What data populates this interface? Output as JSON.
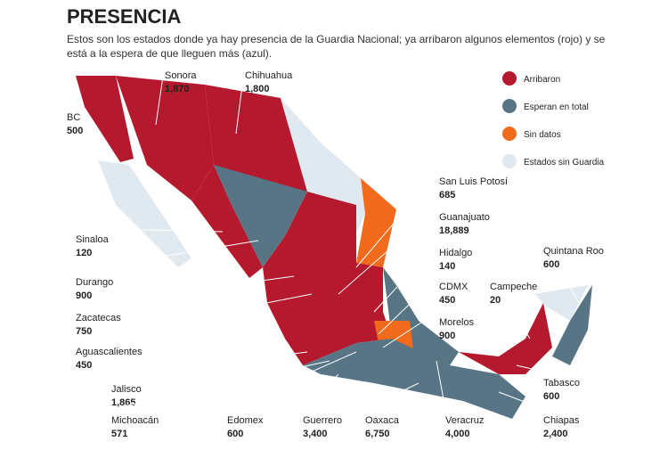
{
  "header": {
    "title": "PRESENCIA",
    "subtitle": "Estos son los estados donde ya hay presencia de la Guardia Nacional; ya arribaron algunos elementos (rojo) y se está a la espera de que lleguen más (azul)."
  },
  "legend": [
    {
      "label": "Arribaron",
      "color": "#b5192e"
    },
    {
      "label": "Esperan en total",
      "color": "#577585"
    },
    {
      "label": "Sin datos",
      "color": "#f26a1b"
    },
    {
      "label": "Estados sin Guardia",
      "color": "#dfe9ef"
    }
  ],
  "states": [
    {
      "name": "BC",
      "value": "500"
    },
    {
      "name": "Sonora",
      "value": "1,870"
    },
    {
      "name": "Chihuahua",
      "value": "1,800"
    },
    {
      "name": "Sinaloa",
      "value": "120"
    },
    {
      "name": "Durango",
      "value": "900"
    },
    {
      "name": "Zacatecas",
      "value": "750"
    },
    {
      "name": "Aguascalientes",
      "value": "450"
    },
    {
      "name": "Jalisco",
      "value": "1,865"
    },
    {
      "name": "Michoacán",
      "value": "571"
    },
    {
      "name": "Edomex",
      "value": "600"
    },
    {
      "name": "Guerrero",
      "value": "3,400"
    },
    {
      "name": "Oaxaca",
      "value": "6,750"
    },
    {
      "name": "Veracruz",
      "value": "4,000"
    },
    {
      "name": "Chiapas",
      "value": "2,400"
    },
    {
      "name": "Tabasco",
      "value": "600"
    },
    {
      "name": "Campeche",
      "value": "20"
    },
    {
      "name": "Quintana Roo",
      "value": "600"
    },
    {
      "name": "San Luis Potosí",
      "value": "685"
    },
    {
      "name": "Guanajuato",
      "value": "18,889"
    },
    {
      "name": "Hidalgo",
      "value": "140"
    },
    {
      "name": "CDMX",
      "value": "450"
    },
    {
      "name": "Morelos",
      "value": "900"
    }
  ]
}
